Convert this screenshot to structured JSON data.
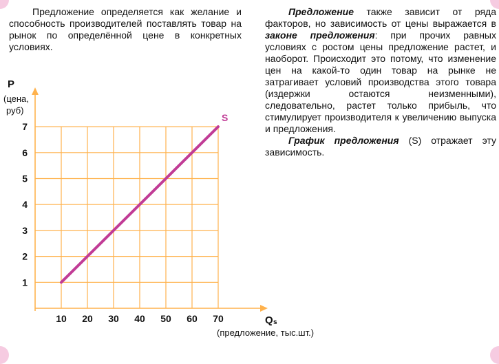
{
  "left_paragraph": "Предложение определяется как желание и способность производителей поставлять товар на рынок по определённой цене в конкретных условиях.",
  "right_paragraph_1": {
    "term": "Предложение",
    "part1": " также зависит от ряда факторов, но зависимость от цены выражается в ",
    "law": "законе предложения",
    "part2": ": при прочих равных условиях с ростом цены предложение растет, и наоборот. Происходит это потому, что изменение цен на какой-то один товар на рынке не затрагивает условий производства этого товара (издержки остаются неизменными), следовательно, растет только прибыль, что стимулирует производителя к увеличению выпуска и предложения."
  },
  "right_paragraph_2": {
    "term": "График предложения",
    "rest": " (S) отражает эту зависимость."
  },
  "colors": {
    "line": "#c13c96",
    "grid": "#ffb24d",
    "label": "#c13c96",
    "corner": "#f6cbe1"
  },
  "chart_data": {
    "type": "line",
    "x_axis_label": "Q",
    "x_axis_subscript": "s",
    "x_axis_caption": "(предложение, тыс.шт.)",
    "y_axis_label": "P",
    "y_axis_caption_line1": "(цена,",
    "y_axis_caption_line2": "руб)",
    "x_ticks": [
      "10",
      "20",
      "30",
      "40",
      "50",
      "60",
      "70"
    ],
    "y_ticks": [
      "1",
      "2",
      "3",
      "4",
      "5",
      "6",
      "7"
    ],
    "xlim": [
      0,
      70
    ],
    "ylim": [
      0,
      7
    ],
    "grid": true,
    "series": [
      {
        "name": "S",
        "x": [
          10,
          70
        ],
        "y": [
          1,
          7
        ]
      }
    ]
  }
}
